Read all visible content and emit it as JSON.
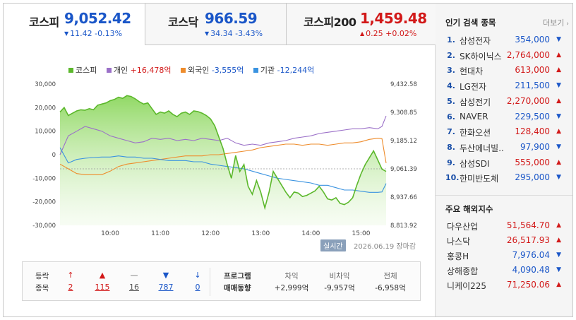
{
  "tabs": [
    {
      "name": "코스피",
      "value": "9,052.42",
      "dir": "down",
      "change": "11.42 -0.13%"
    },
    {
      "name": "코스닥",
      "value": "966.59",
      "dir": "down",
      "change": "34.34 -3.43%"
    },
    {
      "name": "코스피200",
      "value": "1,459.48",
      "dir": "up",
      "change": "0.25 +0.02%"
    }
  ],
  "legend": [
    {
      "label": "코스피",
      "value": "",
      "color": "#5cb82c",
      "valcolor": "#333"
    },
    {
      "label": "개인",
      "value": "+16,478억",
      "color": "#9b70c8",
      "valcolor": "#d21919"
    },
    {
      "label": "외국인",
      "value": "-3,555억",
      "color": "#ee8c2c",
      "valcolor": "#1a56c8"
    },
    {
      "label": "기관",
      "value": "-12,244억",
      "color": "#3a93e0",
      "valcolor": "#1a56c8"
    }
  ],
  "chart_data": {
    "type": "line",
    "left_axis": {
      "ticks": [
        "30,000",
        "20,000",
        "10,000",
        "0",
        "-10,000",
        "-20,000",
        "-30,000"
      ],
      "range": [
        -30000,
        30000
      ]
    },
    "right_axis": {
      "ticks": [
        "9,432.58",
        "9,308.85",
        "9,185.12",
        "9,061.39",
        "8,937.66",
        "8,813.92"
      ],
      "range": [
        8813.92,
        9432.58
      ]
    },
    "x_ticks": [
      "10:00",
      "11:00",
      "12:00",
      "13:00",
      "14:00",
      "15:00"
    ],
    "time_range": [
      "09:00",
      "15:30"
    ],
    "reference_line": 9061.39,
    "series": [
      {
        "name": "코스피",
        "axis": "right",
        "color": "#5cb82c",
        "fill": true,
        "t": [
          "09:00",
          "09:05",
          "09:10",
          "09:15",
          "09:20",
          "09:25",
          "09:30",
          "09:35",
          "09:40",
          "09:45",
          "09:50",
          "09:55",
          "10:00",
          "10:05",
          "10:10",
          "10:15",
          "10:20",
          "10:25",
          "10:30",
          "10:35",
          "10:40",
          "10:45",
          "10:50",
          "10:55",
          "11:00",
          "11:05",
          "11:10",
          "11:15",
          "11:20",
          "11:25",
          "11:30",
          "11:35",
          "11:40",
          "11:45",
          "11:50",
          "11:55",
          "12:00",
          "12:05",
          "12:10",
          "12:15",
          "12:20",
          "12:25",
          "12:30",
          "12:35",
          "12:40",
          "12:45",
          "12:50",
          "12:55",
          "13:00",
          "13:05",
          "13:10",
          "13:15",
          "13:20",
          "13:25",
          "13:30",
          "13:35",
          "13:40",
          "13:45",
          "13:50",
          "13:55",
          "14:00",
          "14:05",
          "14:10",
          "14:15",
          "14:20",
          "14:25",
          "14:30",
          "14:35",
          "14:40",
          "14:45",
          "14:50",
          "14:55",
          "15:00",
          "15:05",
          "15:10",
          "15:15",
          "15:20",
          "15:25",
          "15:30"
        ],
        "values": [
          9310,
          9330,
          9295,
          9305,
          9315,
          9320,
          9318,
          9325,
          9320,
          9340,
          9345,
          9350,
          9360,
          9365,
          9375,
          9370,
          9382,
          9378,
          9368,
          9355,
          9345,
          9350,
          9325,
          9300,
          9310,
          9305,
          9315,
          9300,
          9290,
          9305,
          9310,
          9300,
          9315,
          9312,
          9305,
          9295,
          9280,
          9250,
          9200,
          9150,
          9080,
          9020,
          9120,
          9050,
          9080,
          8985,
          8950,
          9010,
          8960,
          8890,
          8960,
          9050,
          9020,
          8990,
          8960,
          8935,
          8960,
          8955,
          8940,
          8945,
          8955,
          8965,
          8985,
          8960,
          8930,
          8925,
          8935,
          8910,
          8905,
          8915,
          8935,
          8990,
          9040,
          9080,
          9110,
          9140,
          9100,
          9060,
          9050
        ]
      },
      {
        "name": "개인",
        "axis": "left",
        "color": "#9b70c8",
        "fill": false,
        "t": [
          "09:00",
          "09:10",
          "09:20",
          "09:30",
          "09:40",
          "09:50",
          "10:00",
          "10:10",
          "10:20",
          "10:30",
          "10:40",
          "10:50",
          "11:00",
          "11:10",
          "11:20",
          "11:30",
          "11:40",
          "11:50",
          "12:00",
          "12:10",
          "12:20",
          "12:30",
          "12:40",
          "12:50",
          "13:00",
          "13:10",
          "13:20",
          "13:30",
          "13:40",
          "13:50",
          "14:00",
          "14:10",
          "14:20",
          "14:30",
          "14:40",
          "14:50",
          "15:00",
          "15:10",
          "15:20",
          "15:25",
          "15:30"
        ],
        "values": [
          0,
          8000,
          10000,
          12000,
          11000,
          10000,
          8000,
          7000,
          6000,
          5000,
          5500,
          7000,
          6500,
          7000,
          6000,
          6500,
          6000,
          7000,
          6500,
          6000,
          7000,
          5000,
          4000,
          4500,
          4000,
          5000,
          5500,
          6000,
          7000,
          7500,
          8000,
          9000,
          9500,
          10000,
          10500,
          11000,
          11000,
          11500,
          11000,
          12000,
          16478
        ]
      },
      {
        "name": "외국인",
        "axis": "left",
        "color": "#ee8c2c",
        "fill": false,
        "t": [
          "09:00",
          "09:10",
          "09:20",
          "09:30",
          "09:40",
          "09:50",
          "10:00",
          "10:10",
          "10:20",
          "10:30",
          "10:40",
          "10:50",
          "11:00",
          "11:10",
          "11:20",
          "11:30",
          "11:40",
          "11:50",
          "12:00",
          "12:10",
          "12:20",
          "12:30",
          "12:40",
          "12:50",
          "13:00",
          "13:10",
          "13:20",
          "13:30",
          "13:40",
          "13:50",
          "14:00",
          "14:10",
          "14:20",
          "14:30",
          "14:40",
          "14:50",
          "15:00",
          "15:10",
          "15:20",
          "15:25",
          "15:30"
        ],
        "values": [
          -4000,
          -6000,
          -8000,
          -8500,
          -8500,
          -8500,
          -7000,
          -5000,
          -4000,
          -3500,
          -3000,
          -2500,
          -2000,
          -1500,
          -1000,
          -500,
          -500,
          -500,
          0,
          0,
          500,
          1000,
          1500,
          2000,
          3000,
          3500,
          4000,
          4500,
          4500,
          4000,
          4500,
          4500,
          4000,
          4500,
          5000,
          5000,
          5500,
          6500,
          7000,
          6800,
          -3555
        ]
      },
      {
        "name": "기관",
        "axis": "left",
        "color": "#3a93e0",
        "fill": false,
        "t": [
          "09:00",
          "09:10",
          "09:20",
          "09:30",
          "09:40",
          "09:50",
          "10:00",
          "10:10",
          "10:20",
          "10:30",
          "10:40",
          "10:50",
          "11:00",
          "11:10",
          "11:20",
          "11:30",
          "11:40",
          "11:50",
          "12:00",
          "12:10",
          "12:20",
          "12:30",
          "12:40",
          "12:50",
          "13:00",
          "13:10",
          "13:20",
          "13:30",
          "13:40",
          "13:50",
          "14:00",
          "14:10",
          "14:20",
          "14:30",
          "14:40",
          "14:50",
          "15:00",
          "15:10",
          "15:20",
          "15:25",
          "15:30"
        ],
        "values": [
          3000,
          -3500,
          -2000,
          -1500,
          -1200,
          -1000,
          -1000,
          -500,
          -1000,
          -1000,
          -1500,
          -1500,
          -2000,
          -2500,
          -2500,
          -2500,
          -3000,
          -3000,
          -4000,
          -4500,
          -5000,
          -5500,
          -6000,
          -7000,
          -8000,
          -9000,
          -10000,
          -10500,
          -11000,
          -11500,
          -12000,
          -13000,
          -13000,
          -14000,
          -15000,
          -15000,
          -15500,
          -16000,
          -16000,
          -15800,
          -12244
        ]
      }
    ]
  },
  "chart_meta": {
    "realtime": "실시간",
    "stamp": "2026.06.19 장마감"
  },
  "bottom": {
    "left_label1": "등락",
    "left_label2": "종목",
    "counts": [
      {
        "icon": "↑",
        "value": "2",
        "cls": "up"
      },
      {
        "icon": "▲",
        "value": "115",
        "cls": "up"
      },
      {
        "icon": "—",
        "value": "16",
        "cls": "flat"
      },
      {
        "icon": "▼",
        "value": "787",
        "cls": "down"
      },
      {
        "icon": "↓",
        "value": "0",
        "cls": "down"
      }
    ],
    "prog_label1": "프로그램",
    "prog_label2": "매매동향",
    "program": [
      {
        "label": "차익",
        "value": "+2,999억",
        "cls": "up"
      },
      {
        "label": "비차익",
        "value": "-9,957억",
        "cls": "down"
      },
      {
        "label": "전체",
        "value": "-6,958억",
        "cls": "down"
      }
    ]
  },
  "popular": {
    "title": "인기 검색 종목",
    "more": "더보기",
    "items": [
      {
        "rank": "1.",
        "name": "삼성전자",
        "price": "354,000",
        "dir": "down"
      },
      {
        "rank": "2.",
        "name": "SK하이닉스",
        "price": "2,764,000",
        "dir": "up"
      },
      {
        "rank": "3.",
        "name": "현대차",
        "price": "613,000",
        "dir": "up"
      },
      {
        "rank": "4.",
        "name": "LG전자",
        "price": "211,500",
        "dir": "down"
      },
      {
        "rank": "5.",
        "name": "삼성전기",
        "price": "2,270,000",
        "dir": "up"
      },
      {
        "rank": "6.",
        "name": "NAVER",
        "price": "229,500",
        "dir": "down"
      },
      {
        "rank": "7.",
        "name": "한화오션",
        "price": "128,400",
        "dir": "up"
      },
      {
        "rank": "8.",
        "name": "두산에너빌..",
        "price": "97,900",
        "dir": "down"
      },
      {
        "rank": "9.",
        "name": "삼성SDI",
        "price": "555,000",
        "dir": "up"
      },
      {
        "rank": "10.",
        "name": "한미반도체",
        "price": "295,000",
        "dir": "down"
      }
    ]
  },
  "overseas": {
    "title": "주요 해외지수",
    "items": [
      {
        "name": "다우산업",
        "value": "51,564.70",
        "dir": "up"
      },
      {
        "name": "나스닥",
        "value": "26,517.93",
        "dir": "up"
      },
      {
        "name": "홍콩H",
        "value": "7,976.04",
        "dir": "down"
      },
      {
        "name": "상해종합",
        "value": "4,090.48",
        "dir": "down"
      },
      {
        "name": "니케이225",
        "value": "71,250.06",
        "dir": "up"
      }
    ]
  }
}
